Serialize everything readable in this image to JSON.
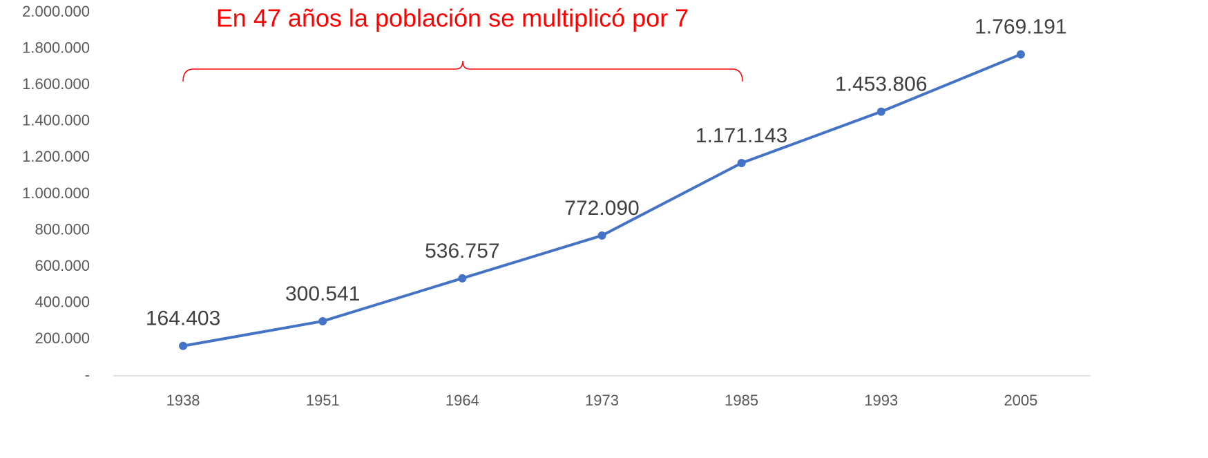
{
  "chart_data": {
    "type": "line",
    "annotation": "En 47 años la población se multiplicó por 7",
    "categories": [
      "1938",
      "1951",
      "1964",
      "1973",
      "1985",
      "1993",
      "2005"
    ],
    "series": [
      {
        "color": "#4472c4",
        "values": [
          164403,
          300541,
          536757,
          772090,
          1171143,
          1453806,
          1769191
        ],
        "value_labels": [
          "164.403",
          "300.541",
          "536.757",
          "772.090",
          "1.171.143",
          "1.453.806",
          "1.769.191"
        ]
      }
    ],
    "ylim": [
      0,
      2000000
    ],
    "yticks": [
      {
        "value": 0,
        "label": "-"
      },
      {
        "value": 200000,
        "label": "200.000"
      },
      {
        "value": 400000,
        "label": "400.000"
      },
      {
        "value": 600000,
        "label": "600.000"
      },
      {
        "value": 800000,
        "label": "800.000"
      },
      {
        "value": 1000000,
        "label": "1.000.000"
      },
      {
        "value": 1200000,
        "label": "1.200.000"
      },
      {
        "value": 1400000,
        "label": "1.400.000"
      },
      {
        "value": 1600000,
        "label": "1.600.000"
      },
      {
        "value": 1800000,
        "label": "1.800.000"
      },
      {
        "value": 2000000,
        "label": "2.000.000"
      }
    ],
    "grid": false
  }
}
